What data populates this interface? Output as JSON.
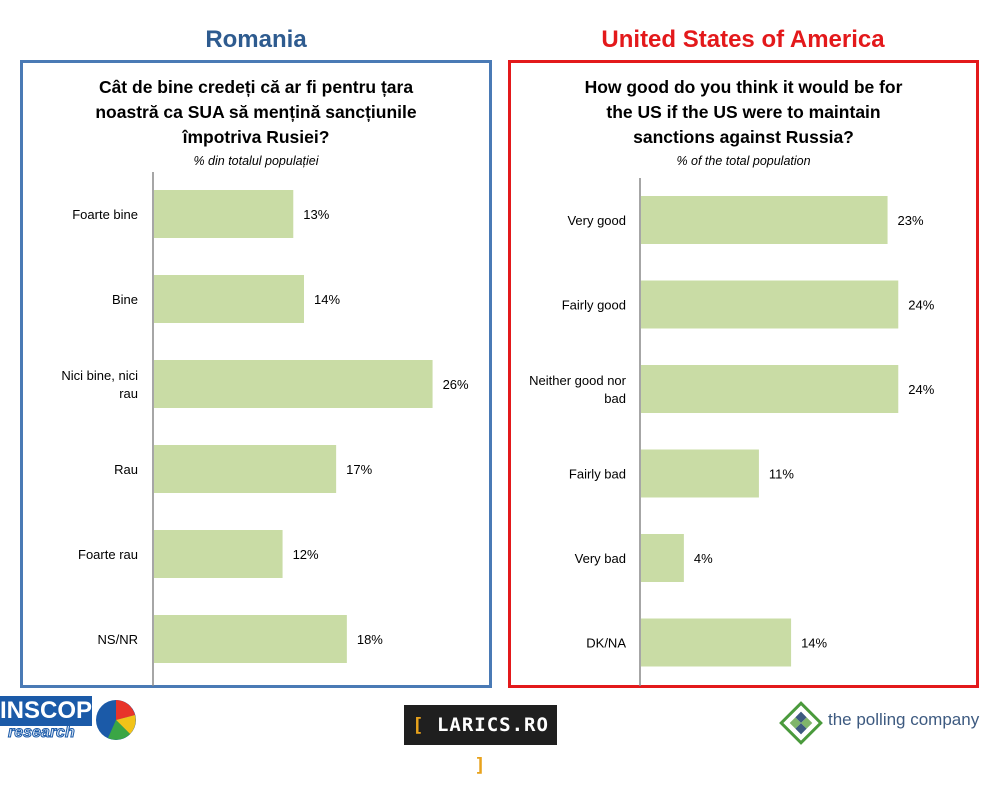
{
  "colors": {
    "bar": "#c9dca5",
    "axis": "#888888",
    "romania_title": "#2e5b8f",
    "romania_border": "#4a7ab5",
    "us_title": "#e3191b",
    "us_border": "#e3191b"
  },
  "romania": {
    "country": "Romania",
    "question_lines": [
      "Cât de bine credeți că ar fi pentru țara",
      "noastră ca SUA să mențină sancțiunile",
      "împotriva Rusiei?"
    ],
    "subtitle": "% din totalul populației"
  },
  "us": {
    "country": "United States of America",
    "question_lines": [
      "How good do you think it would be for",
      "the US if  the US were to maintain",
      "sanctions against Russia?"
    ],
    "subtitle": "% of the total population"
  },
  "chart_data": [
    {
      "type": "bar",
      "orientation": "horizontal",
      "title": "Cât de bine credeți că ar fi pentru țara noastră ca SUA să mențină sancțiunile împotriva Rusiei?",
      "categories": [
        "Foarte bine",
        "Bine",
        "Nici bine, nici rau",
        "Rau",
        "Foarte rau",
        "NS/NR"
      ],
      "category_lines": [
        [
          "Foarte bine"
        ],
        [
          "Bine"
        ],
        [
          "Nici bine, nici",
          "rau"
        ],
        [
          "Rau"
        ],
        [
          "Foarte rau"
        ],
        [
          "NS/NR"
        ]
      ],
      "values": [
        13,
        14,
        26,
        17,
        12,
        18
      ],
      "value_labels": [
        "13%",
        "14%",
        "26%",
        "17%",
        "12%",
        "18%"
      ],
      "xlim": [
        0,
        28
      ],
      "grid": false
    },
    {
      "type": "bar",
      "orientation": "horizontal",
      "title": "How good do you think it would be for the US if  the US were to maintain sanctions against Russia?",
      "categories": [
        "Very good",
        "Fairly good",
        "Neither good nor bad",
        "Fairly bad",
        "Very bad",
        "DK/NA"
      ],
      "category_lines": [
        [
          "Very good"
        ],
        [
          "Fairly good"
        ],
        [
          "Neither good nor",
          "bad"
        ],
        [
          "Fairly bad"
        ],
        [
          "Very bad"
        ],
        [
          "DK/NA"
        ]
      ],
      "values": [
        23,
        24,
        24,
        11,
        4,
        14
      ],
      "value_labels": [
        "23%",
        "24%",
        "24%",
        "11%",
        "4%",
        "14%"
      ],
      "xlim": [
        0,
        25
      ],
      "grid": false
    }
  ],
  "logos": {
    "inscop": "INSCOP",
    "inscop_sub": "research",
    "larics": "LARICS.RO",
    "polling": "the polling company"
  }
}
